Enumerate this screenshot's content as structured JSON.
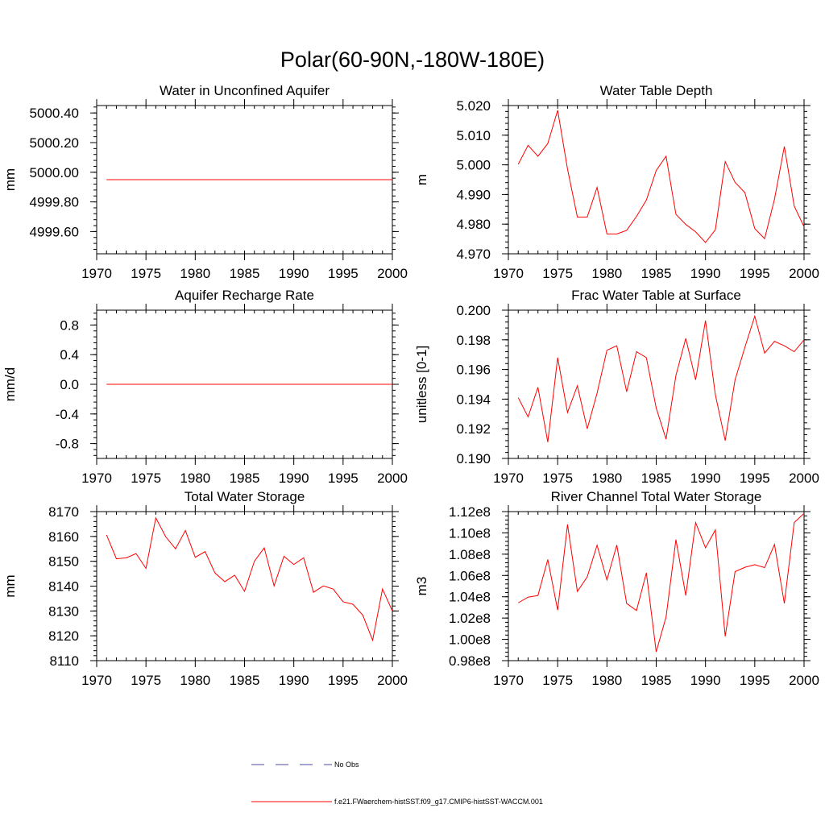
{
  "figure_title": "Polar(60-90N,-180W-180E)",
  "colors": {
    "model": "#ff0000",
    "obs": "#4a4aa0",
    "frame": "#000000"
  },
  "legend": {
    "obs_label": "No Obs",
    "model_label": "f.e21.FWaerchem-histSST.f09_g17.CMIP6-histSST-WACCM.001"
  },
  "chart_data": [
    {
      "type": "line",
      "title": "Water in Unconfined Aquifer",
      "ylabel": "mm",
      "xlim": [
        1970,
        2000
      ],
      "ylim": [
        4999.45,
        5000.45
      ],
      "xticks": [
        1970,
        1975,
        1980,
        1985,
        1990,
        1995,
        2000
      ],
      "xtick_labels": [
        "1970",
        "1975",
        "1980",
        "1985",
        "1990",
        "1995",
        "2000"
      ],
      "yticks": [
        4999.6,
        4999.8,
        5000.0,
        5000.2,
        5000.4
      ],
      "ytick_labels": [
        "4999.60",
        "4999.80",
        "5000.00",
        "5000.20",
        "5000.40"
      ],
      "series": [
        {
          "x": [
            1971,
            1972,
            1973,
            1974,
            1975,
            1976,
            1977,
            1978,
            1979,
            1980,
            1981,
            1982,
            1983,
            1984,
            1985,
            1986,
            1987,
            1988,
            1989,
            1990,
            1991,
            1992,
            1993,
            1994,
            1995,
            1996,
            1997,
            1998,
            1999,
            2000
          ],
          "values": [
            4999.95,
            4999.95,
            4999.95,
            4999.95,
            4999.95,
            4999.95,
            4999.95,
            4999.95,
            4999.95,
            4999.95,
            4999.95,
            4999.95,
            4999.95,
            4999.95,
            4999.95,
            4999.95,
            4999.95,
            4999.95,
            4999.95,
            4999.95,
            4999.95,
            4999.95,
            4999.95,
            4999.95,
            4999.95,
            4999.95,
            4999.95,
            4999.95,
            4999.95,
            4999.95
          ]
        }
      ]
    },
    {
      "type": "line",
      "title": "Water Table Depth",
      "ylabel": "m",
      "xlim": [
        1970,
        2000
      ],
      "ylim": [
        4.97,
        5.02
      ],
      "xticks": [
        1970,
        1975,
        1980,
        1985,
        1990,
        1995,
        2000
      ],
      "xtick_labels": [
        "1970",
        "1975",
        "1980",
        "1985",
        "1990",
        "1995",
        "2000"
      ],
      "yticks": [
        4.97,
        4.98,
        4.99,
        5.0,
        5.01,
        5.02
      ],
      "ytick_labels": [
        "4.970",
        "4.980",
        "4.990",
        "5.000",
        "5.010",
        "5.020"
      ],
      "series": [
        {
          "x": [
            1971,
            1972,
            1973,
            1974,
            1975,
            1976,
            1977,
            1978,
            1979,
            1980,
            1981,
            1982,
            1983,
            1984,
            1985,
            1986,
            1987,
            1988,
            1989,
            1990,
            1991,
            1992,
            1993,
            1994,
            1995,
            1996,
            1997,
            1998,
            1999,
            2000
          ],
          "values": [
            5.0002,
            5.0066,
            5.0029,
            5.0072,
            5.0184,
            4.9986,
            4.9824,
            4.9824,
            4.9924,
            4.9767,
            4.9767,
            4.9779,
            4.9826,
            4.9881,
            4.9981,
            5.0029,
            4.9833,
            4.9799,
            4.9774,
            4.9738,
            4.9781,
            5.0011,
            4.9941,
            4.9906,
            4.9785,
            4.9751,
            4.9884,
            5.0062,
            4.9861,
            4.9791
          ]
        }
      ]
    },
    {
      "type": "line",
      "title": "Aquifer Recharge Rate",
      "ylabel": "mm/d",
      "xlim": [
        1970,
        2000
      ],
      "ylim": [
        -1.0,
        1.0
      ],
      "xticks": [
        1970,
        1975,
        1980,
        1985,
        1990,
        1995,
        2000
      ],
      "xtick_labels": [
        "1970",
        "1975",
        "1980",
        "1985",
        "1990",
        "1995",
        "2000"
      ],
      "yticks": [
        -0.8,
        -0.4,
        0.0,
        0.4,
        0.8
      ],
      "ytick_labels": [
        "-0.8",
        "-0.4",
        "0.0",
        "0.4",
        "0.8"
      ],
      "series": [
        {
          "x": [
            1971,
            1972,
            1973,
            1974,
            1975,
            1976,
            1977,
            1978,
            1979,
            1980,
            1981,
            1982,
            1983,
            1984,
            1985,
            1986,
            1987,
            1988,
            1989,
            1990,
            1991,
            1992,
            1993,
            1994,
            1995,
            1996,
            1997,
            1998,
            1999,
            2000
          ],
          "values": [
            0,
            0,
            0,
            0,
            0,
            0,
            0,
            0,
            0,
            0,
            0,
            0,
            0,
            0,
            0,
            0,
            0,
            0,
            0,
            0,
            0,
            0,
            0,
            0,
            0,
            0,
            0,
            0,
            0,
            0
          ]
        }
      ]
    },
    {
      "type": "line",
      "title": "Frac Water Table at Surface",
      "ylabel": "unitless [0-1]",
      "xlim": [
        1970,
        2000
      ],
      "ylim": [
        0.19,
        0.2
      ],
      "xticks": [
        1970,
        1975,
        1980,
        1985,
        1990,
        1995,
        2000
      ],
      "xtick_labels": [
        "1970",
        "1975",
        "1980",
        "1985",
        "1990",
        "1995",
        "2000"
      ],
      "yticks": [
        0.19,
        0.192,
        0.194,
        0.196,
        0.198,
        0.2
      ],
      "ytick_labels": [
        "0.190",
        "0.192",
        "0.194",
        "0.196",
        "0.198",
        "0.200"
      ],
      "series": [
        {
          "x": [
            1971,
            1972,
            1973,
            1974,
            1975,
            1976,
            1977,
            1978,
            1979,
            1980,
            1981,
            1982,
            1983,
            1984,
            1985,
            1986,
            1987,
            1988,
            1989,
            1990,
            1991,
            1992,
            1993,
            1994,
            1995,
            1996,
            1997,
            1998,
            1999,
            2000
          ],
          "values": [
            0.1941,
            0.1928,
            0.1948,
            0.1911,
            0.1968,
            0.1931,
            0.1949,
            0.192,
            0.1944,
            0.1973,
            0.1976,
            0.1945,
            0.1972,
            0.1968,
            0.1934,
            0.1913,
            0.1956,
            0.1981,
            0.1953,
            0.1993,
            0.1943,
            0.1912,
            0.1953,
            0.1975,
            0.1996,
            0.1971,
            0.1979,
            0.1976,
            0.1972,
            0.198
          ]
        }
      ]
    },
    {
      "type": "line",
      "title": "Total Water Storage",
      "ylabel": "mm",
      "xlim": [
        1970,
        2000
      ],
      "ylim": [
        8110,
        8170
      ],
      "xticks": [
        1970,
        1975,
        1980,
        1985,
        1990,
        1995,
        2000
      ],
      "xtick_labels": [
        "1970",
        "1975",
        "1980",
        "1985",
        "1990",
        "1995",
        "2000"
      ],
      "yticks": [
        8110,
        8120,
        8130,
        8140,
        8150,
        8160,
        8170
      ],
      "ytick_labels": [
        "8110",
        "8120",
        "8130",
        "8140",
        "8150",
        "8160",
        "8170"
      ],
      "series": [
        {
          "x": [
            1971,
            1972,
            1973,
            1974,
            1975,
            1976,
            1977,
            1978,
            1979,
            1980,
            1981,
            1982,
            1983,
            1984,
            1985,
            1986,
            1987,
            1988,
            1989,
            1990,
            1991,
            1992,
            1993,
            1994,
            1995,
            1996,
            1997,
            1998,
            1999,
            2000
          ],
          "values": [
            8160.6,
            8151.0,
            8151.4,
            8153.1,
            8147.1,
            8167.5,
            8159.9,
            8155.0,
            8162.4,
            8151.6,
            8153.9,
            8145.3,
            8141.8,
            8144.4,
            8137.9,
            8150.0,
            8155.4,
            8140.1,
            8152.0,
            8148.7,
            8151.4,
            8137.5,
            8140.1,
            8138.8,
            8133.7,
            8132.7,
            8128.3,
            8118.2,
            8138.8,
            8130.0
          ]
        }
      ]
    },
    {
      "type": "line",
      "title": "River Channel Total Water Storage",
      "ylabel": "m3",
      "xlim": [
        1970,
        2000
      ],
      "ylim": [
        98000000.0,
        112000000.0
      ],
      "xticks": [
        1970,
        1975,
        1980,
        1985,
        1990,
        1995,
        2000
      ],
      "xtick_labels": [
        "1970",
        "1975",
        "1980",
        "1985",
        "1990",
        "1995",
        "2000"
      ],
      "yticks": [
        98000000.0,
        100000000.0,
        102000000.0,
        104000000.0,
        106000000.0,
        108000000.0,
        110000000.0,
        112000000.0
      ],
      "ytick_labels": [
        "0.98e8",
        "1.00e8",
        "1.02e8",
        "1.04e8",
        "1.06e8",
        "1.08e8",
        "1.10e8",
        "1.12e8"
      ],
      "series": [
        {
          "x": [
            1971,
            1972,
            1973,
            1974,
            1975,
            1976,
            1977,
            1978,
            1979,
            1980,
            1981,
            1982,
            1983,
            1984,
            1985,
            1986,
            1987,
            1988,
            1989,
            1990,
            1991,
            1992,
            1993,
            1994,
            1995,
            1996,
            1997,
            1998,
            1999,
            2000
          ],
          "values": [
            103430000.0,
            103960000.0,
            104120000.0,
            107500000.0,
            102750000.0,
            110790000.0,
            104500000.0,
            105870000.0,
            108840000.0,
            105580000.0,
            108860000.0,
            103380000.0,
            102710000.0,
            106250000.0,
            98830000.0,
            102100000.0,
            109370000.0,
            104120000.0,
            110970000.0,
            108600000.0,
            110280000.0,
            100280000.0,
            106360000.0,
            106770000.0,
            107010000.0,
            106740000.0,
            108910000.0,
            103380000.0,
            110970000.0,
            111830000.0
          ]
        }
      ]
    }
  ]
}
